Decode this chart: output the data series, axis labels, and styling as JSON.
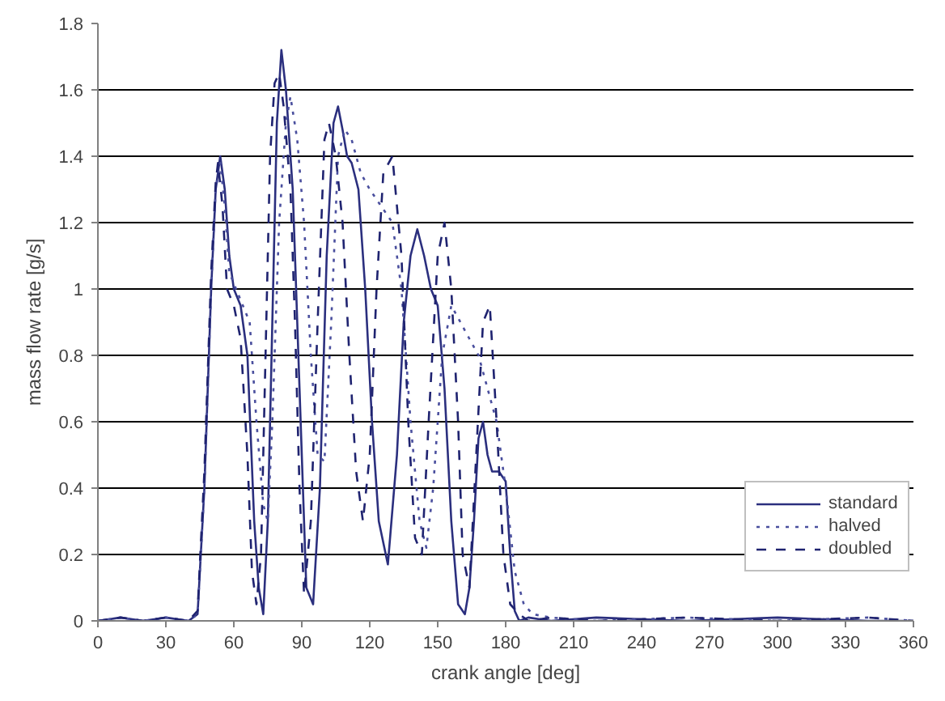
{
  "chart_data": {
    "type": "line",
    "xlabel": "crank angle [deg]",
    "ylabel": "mass flow rate [g/s]",
    "xlim": [
      0,
      360
    ],
    "ylim": [
      0,
      1.8
    ],
    "xticks": [
      0,
      30,
      60,
      90,
      120,
      150,
      180,
      210,
      240,
      270,
      300,
      330,
      360
    ],
    "yticks": [
      0,
      0.2,
      0.4,
      0.6,
      0.8,
      1,
      1.2,
      1.4,
      1.6,
      1.8
    ],
    "grid": "y",
    "legend": "right",
    "marker": "none",
    "series": [
      {
        "name": "standard",
        "color": "#2b2f7e",
        "line_style": "solid",
        "x": [
          0,
          10,
          20,
          30,
          40,
          44,
          47,
          50,
          52,
          54,
          56,
          58,
          60,
          63,
          66,
          69,
          71,
          73,
          75,
          77,
          79,
          81,
          83,
          86,
          89,
          92,
          95,
          98,
          101,
          104,
          106,
          108,
          110,
          112,
          115,
          118,
          121,
          124,
          128,
          132,
          135,
          138,
          141,
          144,
          147,
          150,
          153,
          156,
          159,
          162,
          164,
          166,
          168,
          170,
          172,
          174,
          177,
          180,
          182,
          184,
          186,
          190,
          200,
          220,
          260,
          300,
          340,
          360
        ],
        "values": [
          0,
          0.01,
          0,
          0.01,
          0,
          0.02,
          0.4,
          1.0,
          1.3,
          1.4,
          1.3,
          1.1,
          1.0,
          0.95,
          0.8,
          0.3,
          0.1,
          0.02,
          0.3,
          0.9,
          1.5,
          1.72,
          1.6,
          1.3,
          0.7,
          0.1,
          0.05,
          0.4,
          1.1,
          1.5,
          1.55,
          1.48,
          1.4,
          1.38,
          1.3,
          1.0,
          0.6,
          0.3,
          0.17,
          0.5,
          0.9,
          1.1,
          1.18,
          1.1,
          1.0,
          0.95,
          0.7,
          0.3,
          0.05,
          0.02,
          0.1,
          0.3,
          0.55,
          0.6,
          0.5,
          0.45,
          0.45,
          0.42,
          0.2,
          0.03,
          0,
          0.01,
          0,
          0.01,
          0,
          0.01,
          0,
          0
        ]
      },
      {
        "name": "halved",
        "color": "#4a4f9e",
        "line_style": "dotted",
        "x": [
          0,
          10,
          20,
          30,
          40,
          44,
          47,
          50,
          52,
          54,
          56,
          58,
          61,
          64,
          67,
          70,
          73,
          75,
          77,
          80,
          83,
          85,
          88,
          91,
          94,
          97,
          100,
          103,
          106,
          109,
          112,
          116,
          120,
          125,
          130,
          134,
          138,
          142,
          145,
          148,
          152,
          156,
          160,
          164,
          168,
          172,
          176,
          180,
          184,
          188,
          192,
          200,
          220,
          260,
          300,
          340,
          360
        ],
        "values": [
          0,
          0.01,
          0,
          0.01,
          0,
          0.02,
          0.4,
          1.0,
          1.3,
          1.38,
          1.25,
          1.05,
          1.0,
          0.95,
          0.9,
          0.6,
          0.35,
          0.3,
          0.6,
          1.2,
          1.5,
          1.58,
          1.45,
          1.2,
          0.8,
          0.5,
          0.48,
          0.9,
          1.4,
          1.48,
          1.45,
          1.35,
          1.3,
          1.25,
          1.2,
          1.0,
          0.6,
          0.3,
          0.22,
          0.4,
          0.8,
          0.95,
          0.9,
          0.85,
          0.8,
          0.7,
          0.6,
          0.4,
          0.15,
          0.05,
          0.02,
          0.01,
          0,
          0.01,
          0,
          0.01,
          0
        ]
      },
      {
        "name": "doubled",
        "color": "#1f2370",
        "line_style": "dashed",
        "x": [
          0,
          10,
          20,
          30,
          40,
          44,
          47,
          50,
          52,
          53,
          55,
          57,
          60,
          63,
          66,
          68,
          70,
          72,
          74,
          76,
          78,
          80,
          82,
          85,
          87,
          89,
          91,
          94,
          97,
          100,
          102,
          105,
          108,
          111,
          114,
          117,
          120,
          123,
          126,
          130,
          134,
          137,
          140,
          143,
          146,
          150,
          153,
          156,
          159,
          161,
          164,
          167,
          170,
          173,
          176,
          179,
          182,
          186,
          190,
          200,
          220,
          260,
          300,
          340,
          360
        ],
        "values": [
          0,
          0.01,
          0,
          0.01,
          0,
          0.03,
          0.45,
          1.05,
          1.32,
          1.38,
          1.25,
          1.0,
          0.95,
          0.85,
          0.5,
          0.15,
          0.05,
          0.2,
          0.8,
          1.4,
          1.62,
          1.65,
          1.55,
          1.3,
          0.9,
          0.4,
          0.08,
          0.3,
          0.9,
          1.45,
          1.5,
          1.4,
          1.2,
          0.8,
          0.45,
          0.3,
          0.5,
          1.0,
          1.35,
          1.4,
          1.1,
          0.6,
          0.25,
          0.2,
          0.6,
          1.1,
          1.2,
          1.0,
          0.6,
          0.2,
          0.1,
          0.5,
          0.9,
          0.95,
          0.6,
          0.2,
          0.05,
          0.02,
          0,
          0.01,
          0,
          0.01,
          0,
          0.01,
          0
        ]
      }
    ]
  }
}
